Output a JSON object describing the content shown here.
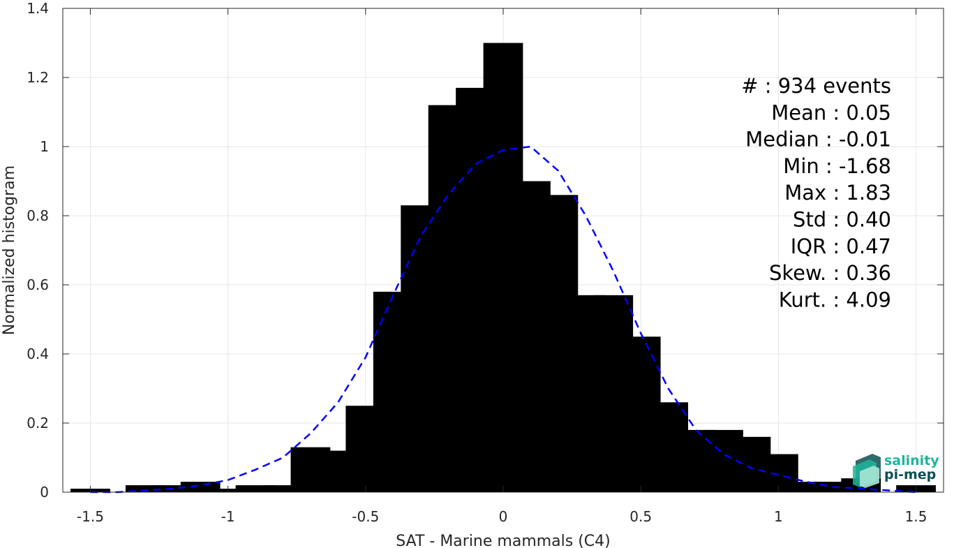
{
  "chart_data": {
    "type": "bar",
    "xlabel": "SAT - Marine mammals (C4)",
    "ylabel": "Normalized histogram",
    "xlim": [
      -1.6,
      1.6
    ],
    "ylim": [
      0,
      1.4
    ],
    "xticks": [
      -1.5,
      -1,
      -0.5,
      0,
      0.5,
      1,
      1.5
    ],
    "xtick_labels": [
      "-1.5",
      "-1",
      "-0.5",
      "0",
      "0.5",
      "1",
      "1.5"
    ],
    "yticks": [
      0,
      0.2,
      0.4,
      0.6,
      0.8,
      1,
      1.2,
      1.4
    ],
    "ytick_labels": [
      "0",
      "0.2",
      "0.4",
      "0.6",
      "0.8",
      "1",
      "1.2",
      "1.4"
    ],
    "grid": true,
    "bar_color": "#000000",
    "bins": [
      -1.5,
      -1.4,
      -1.3,
      -1.2,
      -1.1,
      -1.0,
      -0.9,
      -0.8,
      -0.7,
      -0.6,
      -0.5,
      -0.4,
      -0.3,
      -0.2,
      -0.1,
      0.0,
      0.1,
      0.2,
      0.3,
      0.4,
      0.5,
      0.6,
      0.7,
      0.8,
      0.9,
      1.0,
      1.1,
      1.2,
      1.3,
      1.5
    ],
    "values": [
      0.01,
      0.0,
      0.02,
      0.02,
      0.03,
      0.01,
      0.02,
      0.02,
      0.13,
      0.12,
      0.25,
      0.58,
      0.83,
      1.12,
      1.17,
      1.3,
      0.9,
      0.86,
      0.57,
      0.57,
      0.45,
      0.26,
      0.18,
      0.18,
      0.16,
      0.11,
      0.03,
      0.03,
      0.04,
      0.02
    ],
    "fit_curve": {
      "style": "dashed",
      "color": "#0000ff",
      "x": [
        -1.5,
        -1.4,
        -1.3,
        -1.2,
        -1.1,
        -1.0,
        -0.9,
        -0.8,
        -0.7,
        -0.6,
        -0.5,
        -0.4,
        -0.3,
        -0.2,
        -0.1,
        0.0,
        0.1,
        0.2,
        0.3,
        0.4,
        0.5,
        0.6,
        0.7,
        0.8,
        0.9,
        1.0,
        1.1,
        1.2,
        1.3,
        1.4,
        1.5
      ],
      "y": [
        0.0,
        0.0,
        0.005,
        0.01,
        0.02,
        0.035,
        0.065,
        0.1,
        0.17,
        0.26,
        0.39,
        0.57,
        0.74,
        0.86,
        0.95,
        0.99,
        1.0,
        0.93,
        0.8,
        0.64,
        0.46,
        0.3,
        0.18,
        0.11,
        0.07,
        0.05,
        0.03,
        0.015,
        0.01,
        0.005,
        0.0
      ]
    },
    "stats": [
      {
        "label": "#  : 934 events"
      },
      {
        "label": "Mean : 0.05"
      },
      {
        "label": "Median : -0.01"
      },
      {
        "label": "Min : -1.68"
      },
      {
        "label": "Max : 1.83"
      },
      {
        "label": "Std : 0.40"
      },
      {
        "label": "IQR : 0.47"
      },
      {
        "label": "Skew. : 0.36"
      },
      {
        "label": "Kurt. : 4.09"
      }
    ]
  },
  "logo": {
    "line1": "salinity",
    "line2": "pi-mep",
    "color1": "#1fb59a",
    "color2": "#0d4f55"
  }
}
